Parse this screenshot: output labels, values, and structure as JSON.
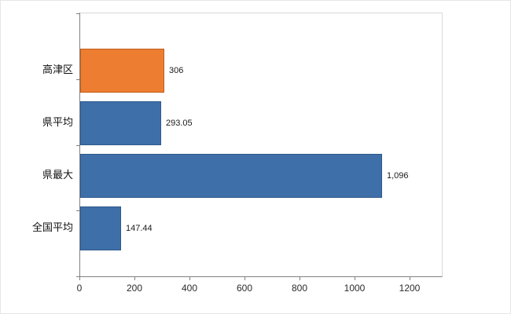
{
  "chart_data": {
    "type": "bar",
    "orientation": "horizontal",
    "title": "",
    "xlabel": "",
    "ylabel": "",
    "categories": [
      "高津区",
      "県平均",
      "県最大",
      "全国平均"
    ],
    "values": [
      306,
      293.05,
      1096,
      147.44
    ],
    "value_labels": [
      "306",
      "293.05",
      "1,096",
      "147.44"
    ],
    "bar_colors": [
      "#ed7d31",
      "#3f6fa8",
      "#3f6fa8",
      "#3f6fa8"
    ],
    "bar_border_colors": [
      "#c05f1c",
      "#2e5a8c",
      "#2e5a8c",
      "#2e5a8c"
    ],
    "x_ticks": [
      0,
      200,
      400,
      600,
      800,
      1000,
      1200
    ],
    "x_tick_labels": [
      "0",
      "200",
      "400",
      "600",
      "800",
      "1000",
      "1200"
    ],
    "xlim": [
      0,
      1314
    ],
    "grid": false,
    "legend": false,
    "colors": {
      "axis": "#808080",
      "frame": "#d9d9d9",
      "background": "#ffffff",
      "highlight_orange": "#ed7d31",
      "series_blue": "#3f6fa8"
    }
  }
}
